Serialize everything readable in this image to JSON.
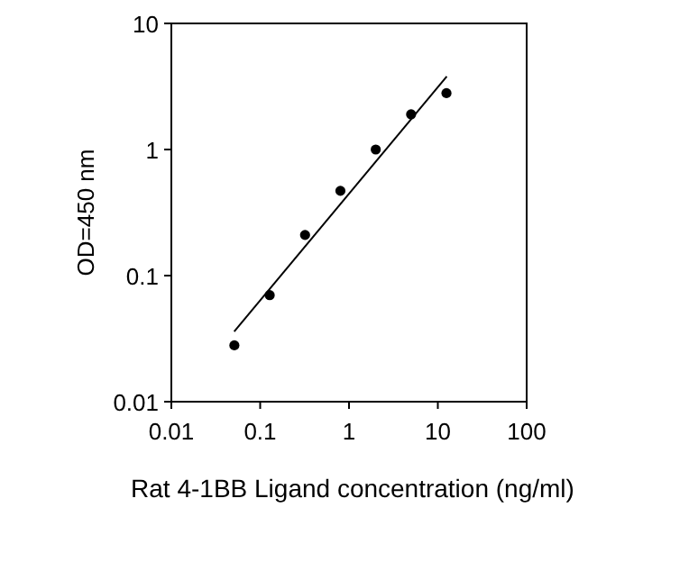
{
  "chart_data": {
    "type": "scatter",
    "xlabel": "Rat 4-1BB Ligand concentration (ng/ml)",
    "ylabel": "OD=450 nm",
    "log": "xy",
    "marker": "circle",
    "xlim": [
      0.01,
      100
    ],
    "xticks": [
      0.01,
      0.1,
      1,
      10,
      100
    ],
    "ylim": [
      0.01,
      10
    ],
    "yticks": [
      0.01,
      0.1,
      1,
      10
    ],
    "series": [
      {
        "color": "#000000",
        "x": [
          0.0512,
          0.128,
          0.32,
          0.8,
          2,
          5,
          12.5
        ],
        "values": [
          0.028,
          0.07,
          0.21,
          0.47,
          1.0,
          1.9,
          2.8
        ]
      },
      {
        "type": "line",
        "marker": "none",
        "color": "#000000",
        "x": [
          0.051,
          12.6
        ],
        "values": [
          0.036,
          3.8
        ]
      }
    ]
  }
}
